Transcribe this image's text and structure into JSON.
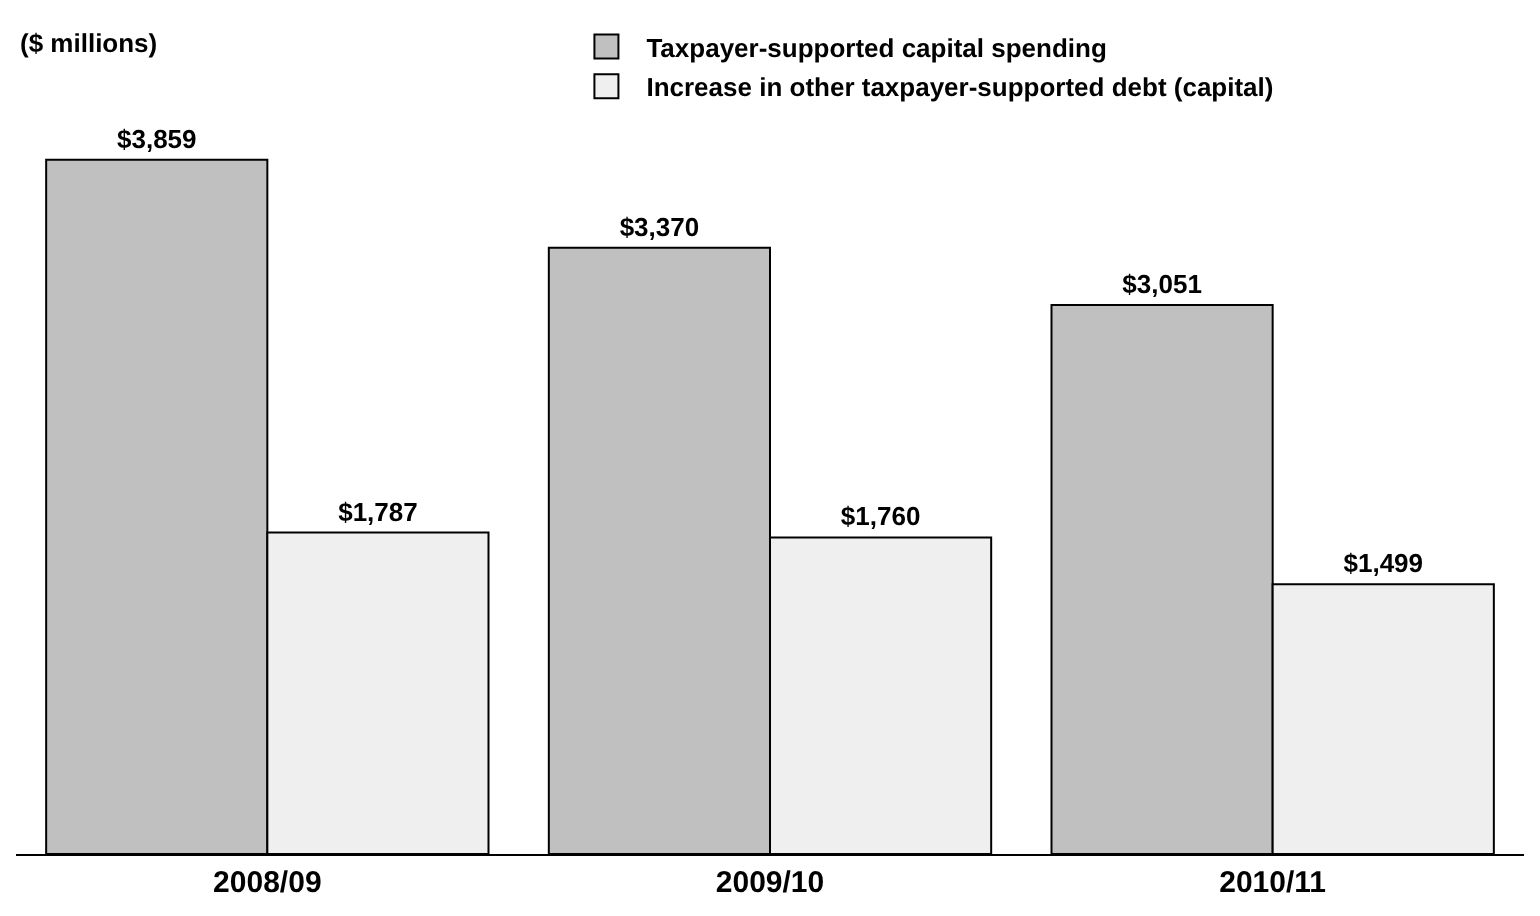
{
  "chart_data": {
    "type": "bar",
    "ylabel": "($ millions)",
    "categories": [
      "2008/09",
      "2009/10",
      "2010/11"
    ],
    "series": [
      {
        "name": "Taxpayer-supported capital spending",
        "color": "#c0c0c0",
        "values": [
          3859,
          3370,
          3051
        ],
        "value_labels": [
          "$3,859",
          "$3,370",
          "$3,051"
        ]
      },
      {
        "name": "Increase in other taxpayer-supported debt (capital)",
        "color": "#efefef",
        "values": [
          1787,
          1760,
          1499
        ],
        "value_labels": [
          "$1,787",
          "$1,760",
          "$1,499"
        ]
      }
    ],
    "legend": "top"
  }
}
